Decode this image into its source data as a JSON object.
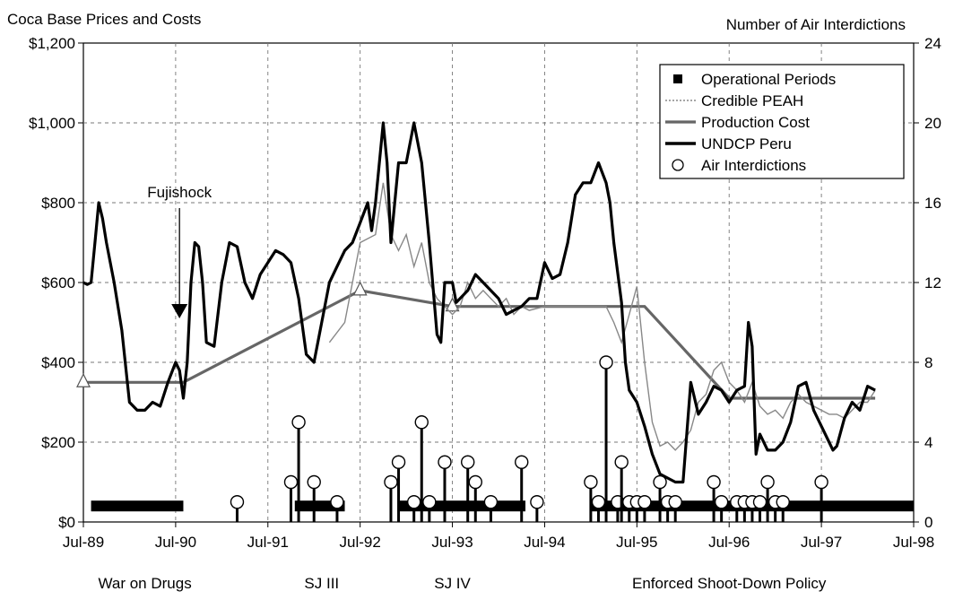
{
  "chart_data": {
    "type": "line",
    "left_axis_title": "Coca Base Prices and Costs",
    "right_axis_title": "Number of Air Interdictions",
    "ylim_left": [
      0,
      1200
    ],
    "ylim_right": [
      0,
      24
    ],
    "y_ticks_left": [
      0,
      200,
      400,
      600,
      800,
      1000,
      1200
    ],
    "y_tick_labels_left": [
      "$0",
      "$200",
      "$400",
      "$600",
      "$800",
      "$1,000",
      "$1,200"
    ],
    "y_ticks_right": [
      0,
      4,
      8,
      12,
      16,
      20,
      24
    ],
    "y_tick_labels_right": [
      "0",
      "4",
      "8",
      "12",
      "16",
      "20",
      "24"
    ],
    "x_unit": "months since Jul-89",
    "xlim": [
      0,
      108
    ],
    "x_ticks": [
      0,
      12,
      24,
      36,
      48,
      60,
      72,
      84,
      96,
      108
    ],
    "x_tick_labels": [
      "Jul-89",
      "Jul-90",
      "Jul-91",
      "Jul-92",
      "Jul-93",
      "Jul-94",
      "Jul-95",
      "Jul-96",
      "Jul-97",
      "Jul-98"
    ],
    "grid": "dashed vertical and horizontal",
    "legend_placement": "top-right",
    "legend": [
      {
        "label": "Operational Periods",
        "marker": "square"
      },
      {
        "label": "Credible PEAH",
        "marker": "thin-gray-line"
      },
      {
        "label": "Production Cost",
        "marker": "gray-line"
      },
      {
        "label": "UNDCP Peru",
        "marker": "thick-black-line"
      },
      {
        "label": "Air Interdictions",
        "marker": "circle"
      }
    ],
    "period_labels": [
      {
        "text": "War on Drugs",
        "x": 8
      },
      {
        "text": "SJ III",
        "x": 31
      },
      {
        "text": "SJ IV",
        "x": 48
      },
      {
        "text": "Enforced Shoot-Down Policy",
        "x": 84
      }
    ],
    "annotation": {
      "text": "Fujishock",
      "x": 12.5,
      "y": 800,
      "arrow_to": [
        12.5,
        510
      ]
    },
    "operational_periods": [
      [
        1,
        13
      ],
      [
        27.5,
        34
      ],
      [
        41,
        57.5
      ],
      [
        66,
        108
      ]
    ],
    "series": [
      {
        "name": "UNDCP Peru",
        "color": "#000000",
        "points": [
          [
            0,
            600
          ],
          [
            0.5,
            595
          ],
          [
            1,
            600
          ],
          [
            1.5,
            700
          ],
          [
            2,
            800
          ],
          [
            2.5,
            760
          ],
          [
            3,
            700
          ],
          [
            4,
            600
          ],
          [
            5,
            480
          ],
          [
            6,
            300
          ],
          [
            7,
            280
          ],
          [
            8,
            280
          ],
          [
            9,
            300
          ],
          [
            10,
            290
          ],
          [
            11,
            350
          ],
          [
            12,
            400
          ],
          [
            12.5,
            380
          ],
          [
            13,
            310
          ],
          [
            13.5,
            400
          ],
          [
            14,
            600
          ],
          [
            14.5,
            700
          ],
          [
            15,
            690
          ],
          [
            15.5,
            600
          ],
          [
            16,
            450
          ],
          [
            17,
            440
          ],
          [
            18,
            600
          ],
          [
            19,
            700
          ],
          [
            20,
            690
          ],
          [
            21,
            600
          ],
          [
            22,
            560
          ],
          [
            23,
            620
          ],
          [
            24,
            650
          ],
          [
            25,
            680
          ],
          [
            26,
            670
          ],
          [
            27,
            650
          ],
          [
            28,
            560
          ],
          [
            29,
            420
          ],
          [
            30,
            400
          ],
          [
            31,
            500
          ],
          [
            32,
            600
          ],
          [
            33,
            640
          ],
          [
            34,
            680
          ],
          [
            35,
            700
          ],
          [
            36,
            750
          ],
          [
            37,
            800
          ],
          [
            37.5,
            730
          ],
          [
            38,
            800
          ],
          [
            39,
            1000
          ],
          [
            39.5,
            900
          ],
          [
            40,
            700
          ],
          [
            41,
            900
          ],
          [
            42,
            900
          ],
          [
            43,
            1000
          ],
          [
            44,
            900
          ],
          [
            45,
            700
          ],
          [
            46,
            470
          ],
          [
            46.5,
            450
          ],
          [
            47,
            600
          ],
          [
            48,
            600
          ],
          [
            48.5,
            550
          ],
          [
            49,
            560
          ],
          [
            50,
            580
          ],
          [
            51,
            620
          ],
          [
            52,
            600
          ],
          [
            53,
            580
          ],
          [
            54,
            560
          ],
          [
            55,
            520
          ],
          [
            56,
            530
          ],
          [
            57,
            540
          ],
          [
            58,
            560
          ],
          [
            59,
            560
          ],
          [
            60,
            650
          ],
          [
            61,
            610
          ],
          [
            62,
            620
          ],
          [
            63,
            700
          ],
          [
            64,
            820
          ],
          [
            65,
            850
          ],
          [
            66,
            850
          ],
          [
            67,
            900
          ],
          [
            68,
            850
          ],
          [
            68.5,
            800
          ],
          [
            69,
            700
          ],
          [
            70,
            550
          ],
          [
            70.5,
            400
          ],
          [
            71,
            330
          ],
          [
            72,
            300
          ],
          [
            73,
            240
          ],
          [
            74,
            170
          ],
          [
            75,
            120
          ],
          [
            76,
            110
          ],
          [
            77,
            100
          ],
          [
            78,
            100
          ],
          [
            79,
            350
          ],
          [
            80,
            270
          ],
          [
            81,
            300
          ],
          [
            82,
            340
          ],
          [
            83,
            330
          ],
          [
            84,
            300
          ],
          [
            85,
            330
          ],
          [
            86,
            340
          ],
          [
            86.5,
            500
          ],
          [
            87,
            440
          ],
          [
            87.5,
            170
          ],
          [
            88,
            220
          ],
          [
            89,
            180
          ],
          [
            90,
            180
          ],
          [
            91,
            200
          ],
          [
            92,
            250
          ],
          [
            93,
            340
          ],
          [
            94,
            350
          ],
          [
            95,
            280
          ],
          [
            96,
            240
          ],
          [
            97,
            200
          ],
          [
            97.5,
            180
          ],
          [
            98,
            190
          ],
          [
            99,
            260
          ],
          [
            100,
            300
          ],
          [
            101,
            280
          ],
          [
            102,
            340
          ],
          [
            103,
            330
          ]
        ]
      },
      {
        "name": "Production Cost",
        "color": "#666666",
        "points": [
          [
            0,
            350
          ],
          [
            13,
            350
          ],
          [
            36,
            580
          ],
          [
            48,
            540
          ],
          [
            73,
            540
          ],
          [
            84,
            310
          ],
          [
            103,
            310
          ]
        ]
      },
      {
        "name": "Credible PEAH",
        "color": "#888888",
        "points": [
          [
            32,
            450
          ],
          [
            34,
            500
          ],
          [
            36,
            700
          ],
          [
            38,
            720
          ],
          [
            39,
            850
          ],
          [
            40,
            720
          ],
          [
            41,
            680
          ],
          [
            42,
            720
          ],
          [
            43,
            640
          ],
          [
            44,
            700
          ],
          [
            45,
            600
          ],
          [
            46,
            560
          ],
          [
            48,
            520
          ],
          [
            49,
            540
          ],
          [
            50,
            600
          ],
          [
            51,
            560
          ],
          [
            52,
            580
          ],
          [
            53,
            560
          ],
          [
            54,
            540
          ],
          [
            55,
            560
          ],
          [
            56,
            520
          ],
          [
            57,
            540
          ],
          [
            58,
            530
          ],
          [
            60,
            540
          ],
          [
            62,
            540
          ],
          [
            64,
            540
          ],
          [
            66,
            540
          ],
          [
            68,
            540
          ],
          [
            69,
            500
          ],
          [
            70,
            450
          ],
          [
            71,
            520
          ],
          [
            72,
            590
          ],
          [
            73,
            400
          ],
          [
            74,
            250
          ],
          [
            75,
            190
          ],
          [
            76,
            200
          ],
          [
            77,
            180
          ],
          [
            78,
            200
          ],
          [
            79,
            230
          ],
          [
            80,
            300
          ],
          [
            81,
            320
          ],
          [
            82,
            380
          ],
          [
            83,
            400
          ],
          [
            84,
            350
          ],
          [
            85,
            330
          ],
          [
            86,
            300
          ],
          [
            87,
            350
          ],
          [
            88,
            290
          ],
          [
            89,
            270
          ],
          [
            90,
            280
          ],
          [
            91,
            260
          ],
          [
            92,
            300
          ],
          [
            93,
            320
          ],
          [
            94,
            300
          ],
          [
            95,
            290
          ],
          [
            96,
            280
          ],
          [
            97,
            270
          ],
          [
            98,
            270
          ],
          [
            99,
            260
          ],
          [
            100,
            280
          ],
          [
            101,
            300
          ],
          [
            102,
            300
          ],
          [
            103,
            330
          ]
        ]
      },
      {
        "name": "Air Interdictions",
        "color": "#000000",
        "points": [
          [
            20,
            1
          ],
          [
            27,
            2
          ],
          [
            28,
            5
          ],
          [
            30,
            2
          ],
          [
            33,
            1
          ],
          [
            40,
            2
          ],
          [
            41,
            3
          ],
          [
            43,
            1
          ],
          [
            44,
            5
          ],
          [
            45,
            1
          ],
          [
            47,
            3
          ],
          [
            50,
            3
          ],
          [
            51,
            2
          ],
          [
            53,
            1
          ],
          [
            57,
            3
          ],
          [
            59,
            1
          ],
          [
            66,
            2
          ],
          [
            67,
            1
          ],
          [
            68,
            8
          ],
          [
            69.5,
            1
          ],
          [
            70,
            3
          ],
          [
            71,
            1
          ],
          [
            72,
            1
          ],
          [
            73,
            1
          ],
          [
            75,
            2
          ],
          [
            76,
            1
          ],
          [
            77,
            1
          ],
          [
            82,
            2
          ],
          [
            83,
            1
          ],
          [
            85,
            1
          ],
          [
            86,
            1
          ],
          [
            87,
            1
          ],
          [
            88,
            1
          ],
          [
            89,
            2
          ],
          [
            90,
            1
          ],
          [
            91,
            1
          ],
          [
            96,
            2
          ]
        ]
      }
    ]
  }
}
